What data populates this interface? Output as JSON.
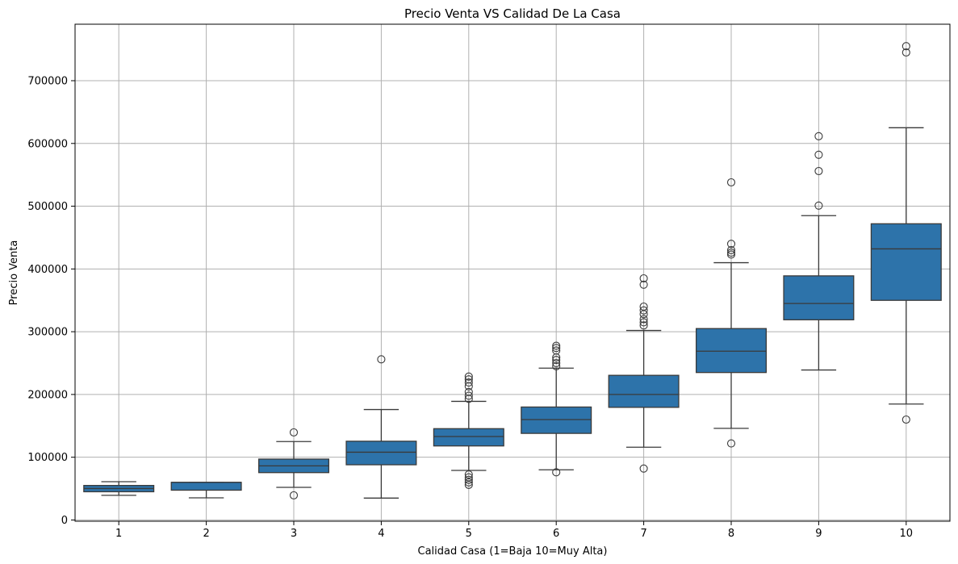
{
  "chart_data": {
    "type": "box",
    "title": "Precio Venta VS Calidad De La Casa",
    "xlabel": "Calidad Casa (1=Baja 10=Muy Alta)",
    "ylabel": "Precio Venta",
    "ylim": [
      -2000,
      790000
    ],
    "yticks": [
      0,
      100000,
      200000,
      300000,
      400000,
      500000,
      600000,
      700000
    ],
    "grid": true,
    "box_color": "#2d73aa",
    "line_color": "#3a3a3a",
    "categories": [
      "1",
      "2",
      "3",
      "4",
      "5",
      "6",
      "7",
      "8",
      "9",
      "10"
    ],
    "boxes": [
      {
        "category": "1",
        "whisker_low": 39300,
        "q1": 45000,
        "median": 50150,
        "q3": 55000,
        "whisker_high": 61000,
        "outliers": []
      },
      {
        "category": "2",
        "whisker_low": 35311,
        "q1": 47500,
        "median": 60000,
        "q3": 60000,
        "whisker_high": 60000,
        "outliers": []
      },
      {
        "category": "3",
        "whisker_low": 52000,
        "q1": 75500,
        "median": 86250,
        "q3": 97000,
        "whisker_high": 125000,
        "outliers": [
          39300,
          139600
        ]
      },
      {
        "category": "4",
        "whisker_low": 34900,
        "q1": 88000,
        "median": 108000,
        "q3": 125500,
        "whisker_high": 176000,
        "outliers": [
          256000
        ]
      },
      {
        "category": "5",
        "whisker_low": 79000,
        "q1": 118000,
        "median": 133000,
        "q3": 145500,
        "whisker_high": 189000,
        "outliers": [
          56000,
          60000,
          64000,
          68000,
          72500,
          193000,
          198000,
          204000,
          213000,
          219000,
          224000,
          228500
        ]
      },
      {
        "category": "6",
        "whisker_low": 80000,
        "q1": 138000,
        "median": 160000,
        "q3": 180000,
        "whisker_high": 242000,
        "outliers": [
          76000,
          245000,
          250000,
          255000,
          259000,
          270000,
          274000,
          277500
        ]
      },
      {
        "category": "7",
        "whisker_low": 116000,
        "q1": 179500,
        "median": 200000,
        "q3": 230500,
        "whisker_high": 302000,
        "outliers": [
          82000,
          310000,
          315000,
          320000,
          328000,
          334000,
          340000,
          375000,
          385000
        ]
      },
      {
        "category": "8",
        "whisker_low": 146000,
        "q1": 235000,
        "median": 269000,
        "q3": 305000,
        "whisker_high": 410000,
        "outliers": [
          122000,
          423000,
          426000,
          430000,
          440000,
          538000
        ]
      },
      {
        "category": "9",
        "whisker_low": 239000,
        "q1": 319000,
        "median": 345000,
        "q3": 389000,
        "whisker_high": 485000,
        "outliers": [
          501000,
          556000,
          582000,
          611500
        ]
      },
      {
        "category": "10",
        "whisker_low": 184750,
        "q1": 350000,
        "median": 432000,
        "q3": 472000,
        "whisker_high": 625000,
        "outliers": [
          160000,
          745000,
          755000
        ]
      }
    ]
  }
}
